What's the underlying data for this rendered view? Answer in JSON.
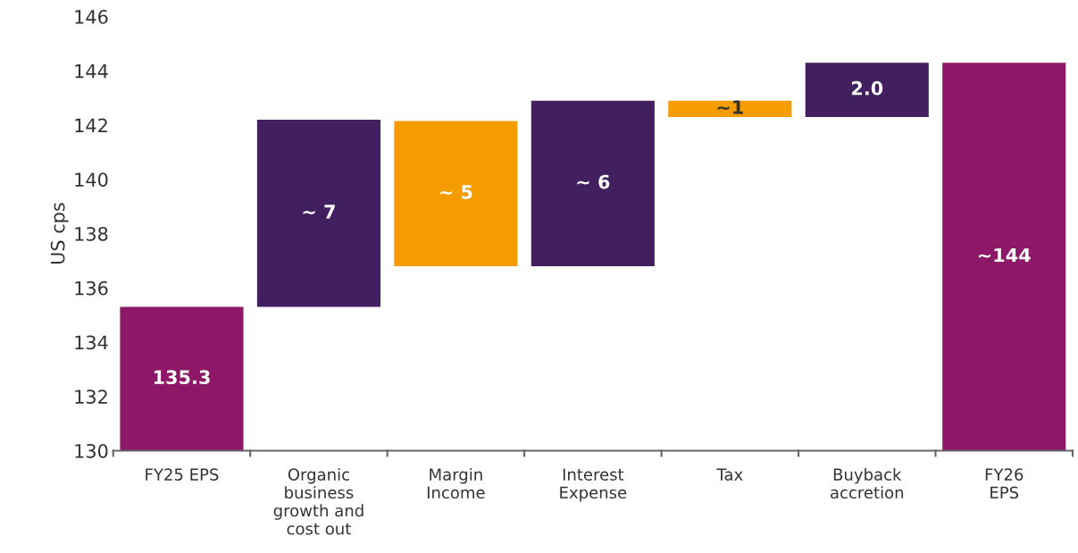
{
  "chart_data": {
    "type": "bar",
    "ylabel": "US cps",
    "categories": [
      "FY25 EPS",
      "Organic\nbusiness\ngrowth and\ncost out",
      "Margin\nIncome",
      "Interest\nExpense",
      "Tax",
      "Buyback\naccretion",
      "FY26\nEPS"
    ],
    "base": [
      130,
      135.3,
      136.8,
      136.8,
      142.3,
      142.3,
      130
    ],
    "values": [
      5.3,
      6.9,
      5.35,
      6.1,
      0.6,
      2.0,
      14.3
    ],
    "colors": [
      "#8e1868",
      "#42205f",
      "#f59c00",
      "#42205f",
      "#f59c00",
      "#42205f",
      "#8e1868"
    ],
    "value_labels": [
      "135.3",
      "∼ 7",
      "∼ 5",
      "∼ 6",
      "∼1",
      "2.0",
      "∼144"
    ],
    "ylim": [
      130,
      146
    ],
    "yticks": [
      130,
      132,
      134,
      136,
      138,
      140,
      142,
      144,
      146
    ],
    "grid": false,
    "legend": false
  }
}
